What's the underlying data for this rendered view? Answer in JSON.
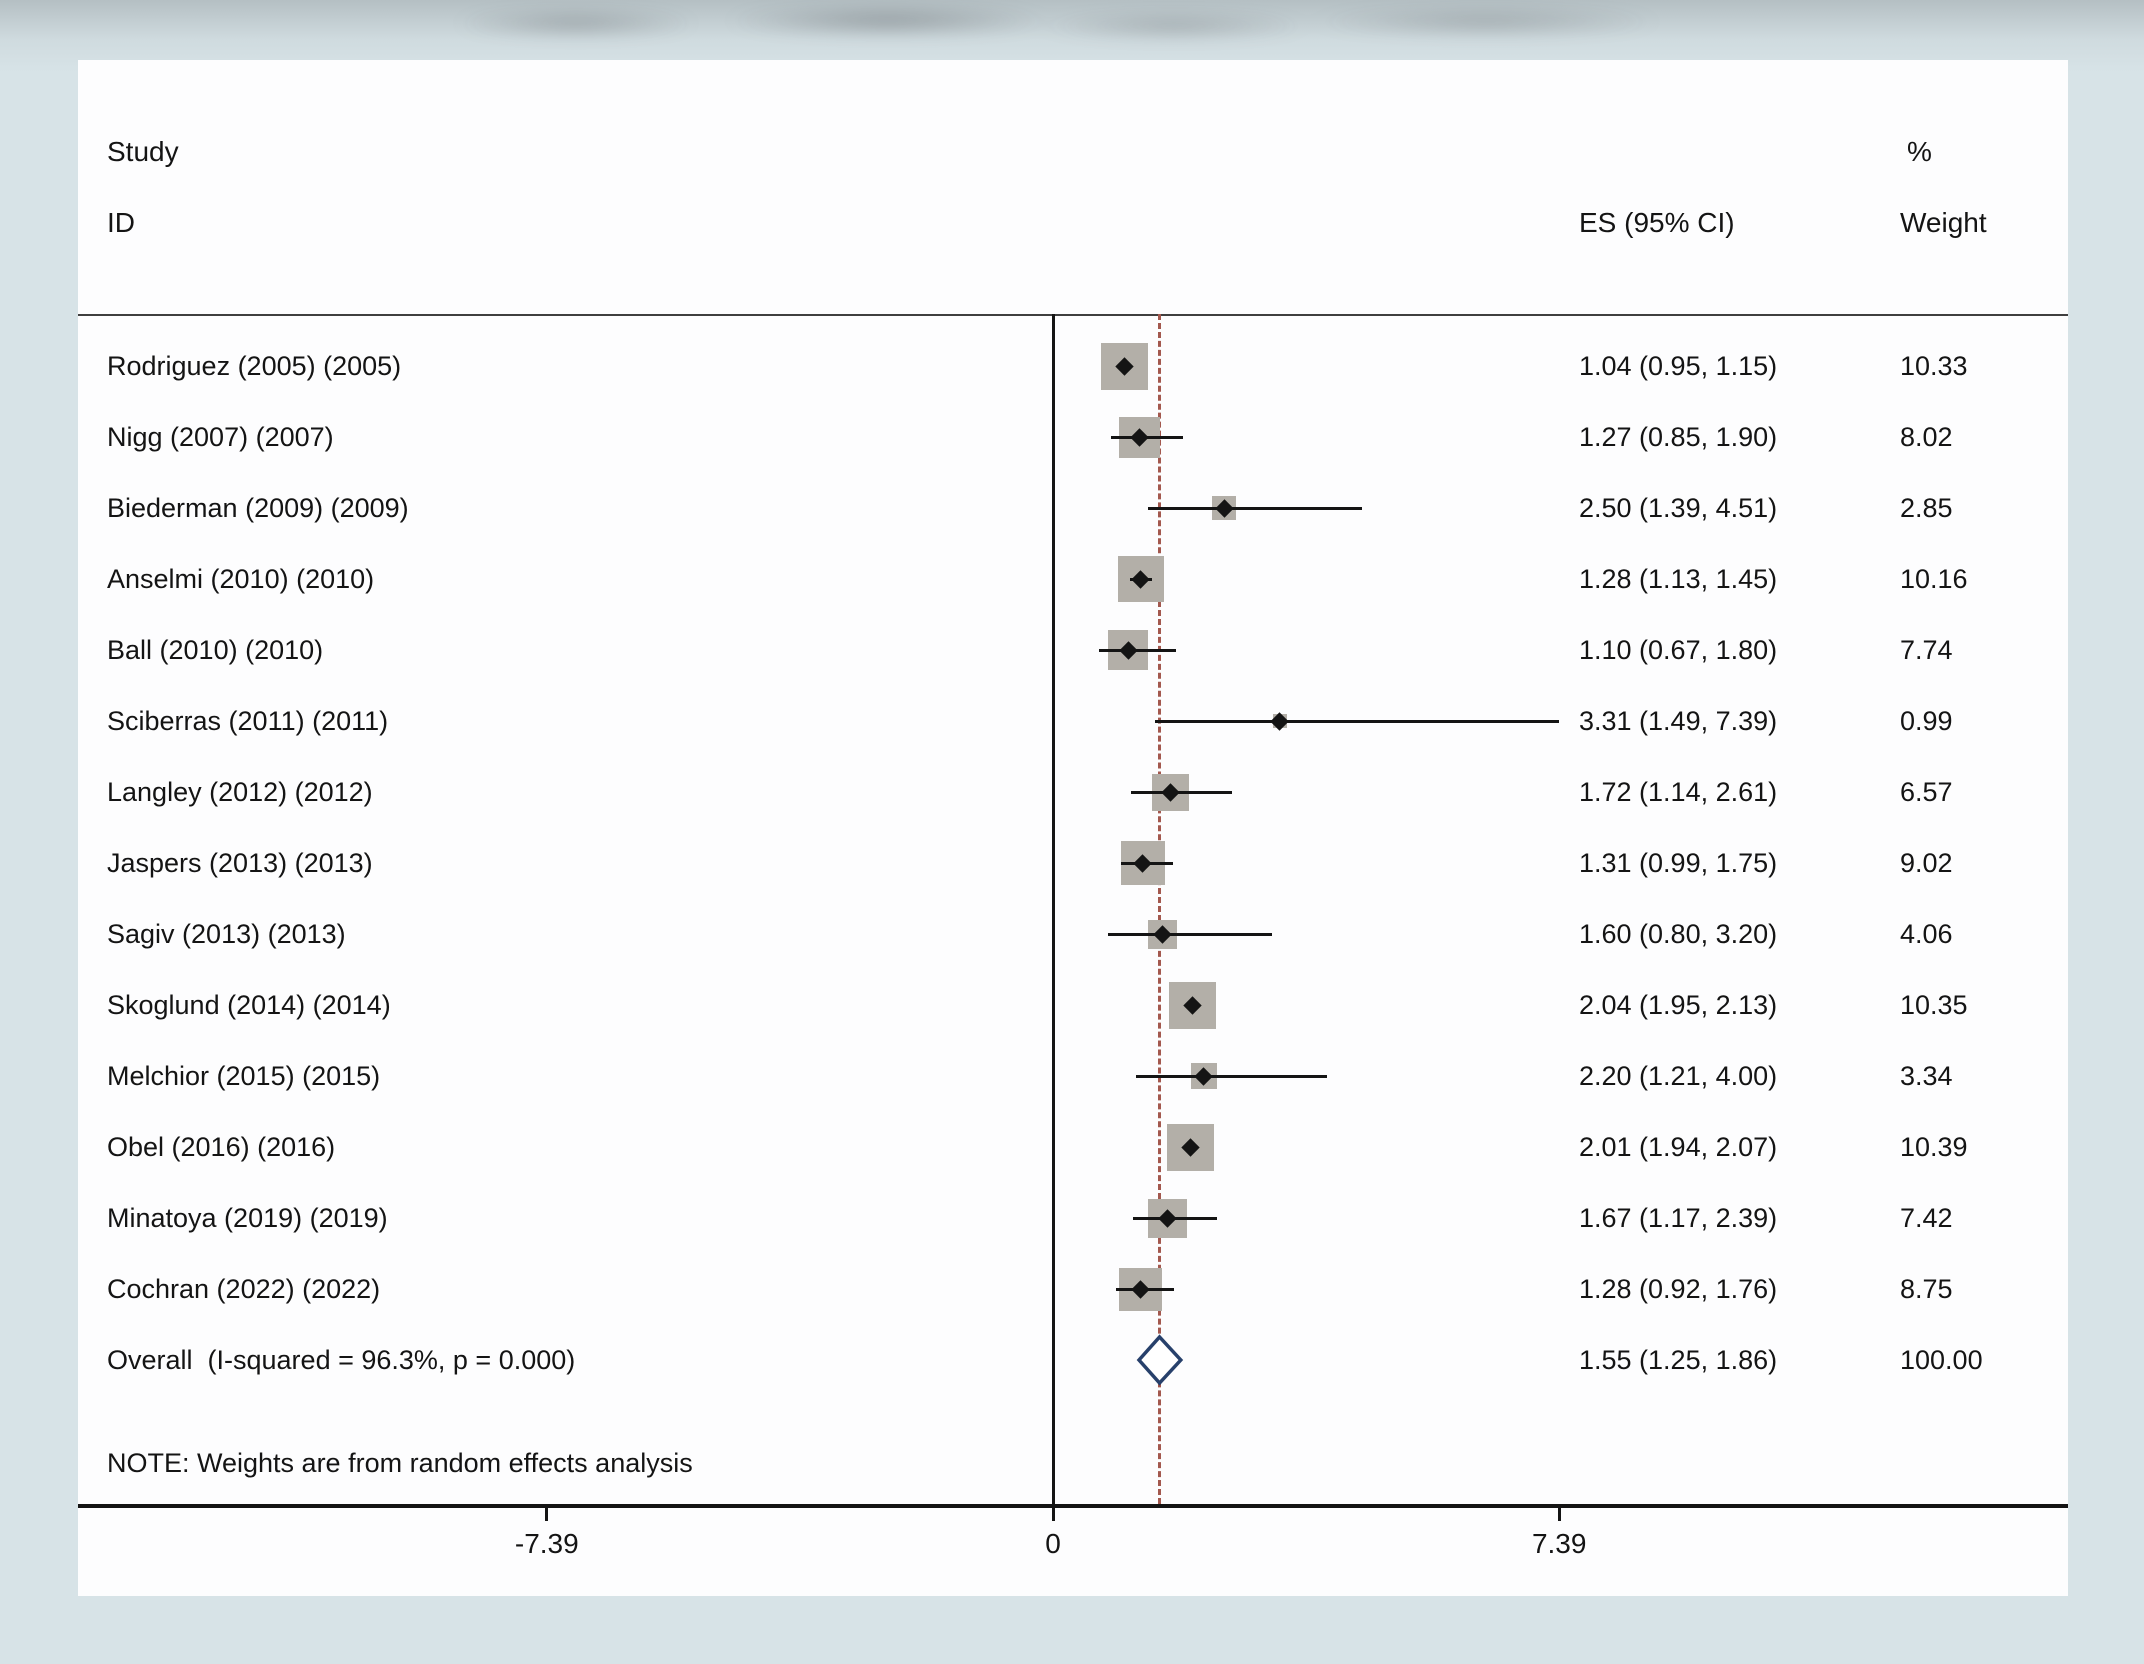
{
  "header": {
    "study": "Study",
    "id": "ID",
    "es_ci": "ES (95% CI)",
    "percent": "%",
    "weight": "Weight"
  },
  "note": "NOTE: Weights are from random effects analysis",
  "colors": {
    "background": "#d7e3e7",
    "panel": "#fdfdfe",
    "square": "#b3afa8",
    "ci_line": "#141414",
    "overall_dashed": "#a3584e",
    "diamond_stroke": "#27406b",
    "text": "#141414"
  },
  "chart_data": {
    "type": "forest",
    "title": "",
    "xlabel": "",
    "x_ticks": [
      {
        "value": -7.39,
        "label": "-7.39"
      },
      {
        "value": 0,
        "label": "0"
      },
      {
        "value": 7.39,
        "label": "7.39"
      }
    ],
    "null_line_x": 0,
    "overall_line_x": 1.55,
    "legend": "none",
    "studies": [
      {
        "label": "Rodriguez (2005) (2005)",
        "es": 1.04,
        "lo": 0.95,
        "hi": 1.15,
        "es_text": "1.04 (0.95, 1.15)",
        "weight": 10.33,
        "weight_text": "10.33"
      },
      {
        "label": "Nigg (2007) (2007)",
        "es": 1.27,
        "lo": 0.85,
        "hi": 1.9,
        "es_text": "1.27 (0.85, 1.90)",
        "weight": 8.02,
        "weight_text": "8.02"
      },
      {
        "label": "Biederman (2009) (2009)",
        "es": 2.5,
        "lo": 1.39,
        "hi": 4.51,
        "es_text": "2.50 (1.39, 4.51)",
        "weight": 2.85,
        "weight_text": "2.85"
      },
      {
        "label": "Anselmi (2010) (2010)",
        "es": 1.28,
        "lo": 1.13,
        "hi": 1.45,
        "es_text": "1.28 (1.13, 1.45)",
        "weight": 10.16,
        "weight_text": "10.16"
      },
      {
        "label": "Ball (2010) (2010)",
        "es": 1.1,
        "lo": 0.67,
        "hi": 1.8,
        "es_text": "1.10 (0.67, 1.80)",
        "weight": 7.74,
        "weight_text": "7.74"
      },
      {
        "label": "Sciberras (2011) (2011)",
        "es": 3.31,
        "lo": 1.49,
        "hi": 7.39,
        "es_text": "3.31 (1.49, 7.39)",
        "weight": 0.99,
        "weight_text": "0.99"
      },
      {
        "label": "Langley (2012) (2012)",
        "es": 1.72,
        "lo": 1.14,
        "hi": 2.61,
        "es_text": "1.72 (1.14, 2.61)",
        "weight": 6.57,
        "weight_text": "6.57"
      },
      {
        "label": "Jaspers (2013) (2013)",
        "es": 1.31,
        "lo": 0.99,
        "hi": 1.75,
        "es_text": "1.31 (0.99, 1.75)",
        "weight": 9.02,
        "weight_text": "9.02"
      },
      {
        "label": "Sagiv (2013) (2013)",
        "es": 1.6,
        "lo": 0.8,
        "hi": 3.2,
        "es_text": "1.60 (0.80, 3.20)",
        "weight": 4.06,
        "weight_text": "4.06"
      },
      {
        "label": "Skoglund (2014) (2014)",
        "es": 2.04,
        "lo": 1.95,
        "hi": 2.13,
        "es_text": "2.04 (1.95, 2.13)",
        "weight": 10.35,
        "weight_text": "10.35"
      },
      {
        "label": "Melchior (2015) (2015)",
        "es": 2.2,
        "lo": 1.21,
        "hi": 4.0,
        "es_text": "2.20 (1.21, 4.00)",
        "weight": 3.34,
        "weight_text": "3.34"
      },
      {
        "label": "Obel (2016) (2016)",
        "es": 2.01,
        "lo": 1.94,
        "hi": 2.07,
        "es_text": "2.01 (1.94, 2.07)",
        "weight": 10.39,
        "weight_text": "10.39"
      },
      {
        "label": "Minatoya (2019) (2019)",
        "es": 1.67,
        "lo": 1.17,
        "hi": 2.39,
        "es_text": "1.67 (1.17, 2.39)",
        "weight": 7.42,
        "weight_text": "7.42"
      },
      {
        "label": "Cochran (2022) (2022)",
        "es": 1.28,
        "lo": 0.92,
        "hi": 1.76,
        "es_text": "1.28 (0.92, 1.76)",
        "weight": 8.75,
        "weight_text": "8.75"
      }
    ],
    "overall": {
      "label": "Overall  (I-squared = 96.3%, p = 0.000)",
      "es": 1.55,
      "lo": 1.25,
      "hi": 1.86,
      "es_text": "1.55 (1.25, 1.86)",
      "weight": 100.0,
      "weight_text": "100.00"
    }
  }
}
